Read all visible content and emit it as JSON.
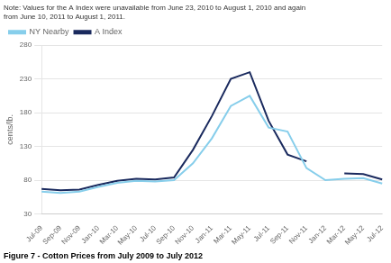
{
  "chart_data": {
    "type": "line",
    "title": "Figure 7 - Cotton Prices from July 2009 to July 2012",
    "subtitle": "Note: Values for the A Index were unavailable from June 23, 2010 to August 1, 2010 and again\nfrom June 10, 2011 to August 1, 2011.",
    "ylabel": "cents/lb.",
    "categories": [
      "Jul-09",
      "Sep-09",
      "Nov-09",
      "Jan-10",
      "Mar-10",
      "May-10",
      "Jul-10",
      "Sep-10",
      "Nov-10",
      "Jan-11",
      "Mar-11",
      "May-11",
      "Jul-11",
      "Sep-11",
      "Nov-11",
      "Jan-12",
      "Mar-12",
      "May-12",
      "Jul-12"
    ],
    "series": [
      {
        "name": "NY Nearby",
        "color": "#87CEEB",
        "values": [
          63,
          61,
          63,
          70,
          76,
          79,
          78,
          80,
          105,
          142,
          190,
          205,
          158,
          152,
          98,
          80,
          82,
          83,
          75
        ]
      },
      {
        "name": "A Index",
        "color": "#1a2a5e",
        "values": [
          67,
          65,
          66,
          73,
          79,
          82,
          81,
          84,
          125,
          175,
          230,
          240,
          168,
          118,
          108,
          null,
          90,
          89,
          81
        ]
      }
    ],
    "ylim": [
      30,
      280
    ],
    "yticks": [
      30,
      80,
      130,
      180,
      230,
      280
    ],
    "grid": true,
    "legend": "upper left"
  }
}
